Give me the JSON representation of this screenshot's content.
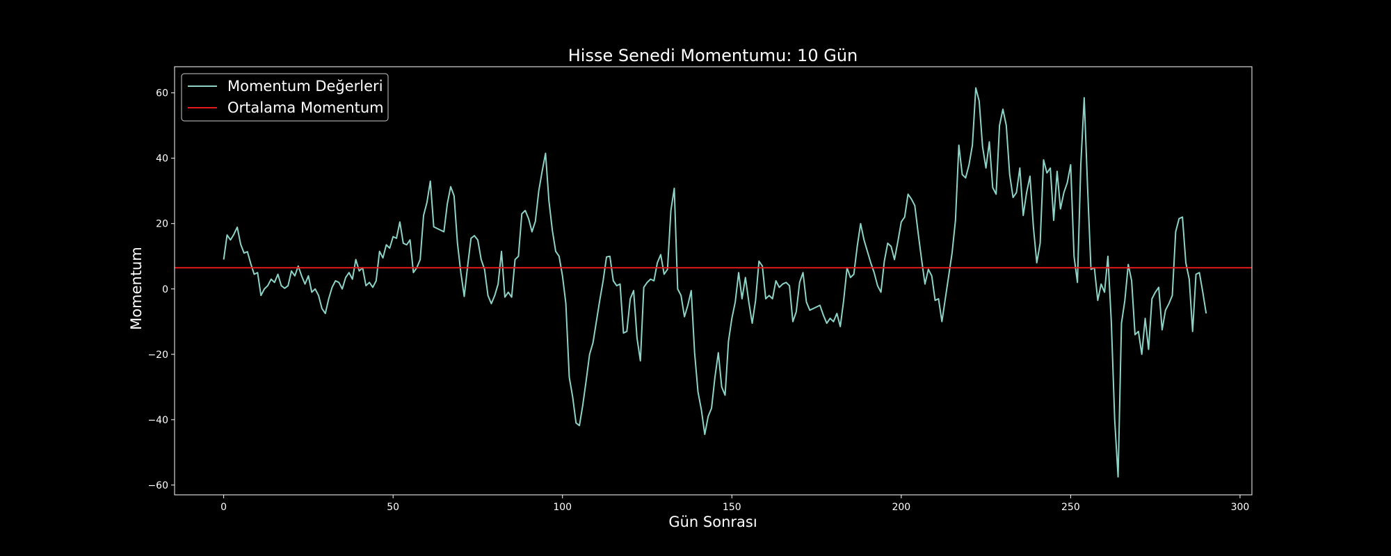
{
  "chart_data": {
    "type": "line",
    "title": "Hisse Senedi Momentumu: 10 Gün",
    "xlabel": "Gün Sonrası",
    "ylabel": "Momentum",
    "xlim": [
      -14.5,
      303.5
    ],
    "ylim": [
      -63,
      68
    ],
    "x_ticks": [
      0,
      50,
      100,
      150,
      200,
      250,
      300
    ],
    "y_ticks": [
      -60,
      -40,
      -20,
      0,
      20,
      40,
      60
    ],
    "grid": false,
    "legend_position": "upper-left",
    "colors": {
      "background": "#000000",
      "momentum": "#8dd3c7",
      "mean": "#e41a1c",
      "axes": "#ffffff"
    },
    "series": [
      {
        "name": "Momentum Değerleri",
        "x_start": 0,
        "x_step": 1,
        "values": [
          9,
          16.5,
          15,
          16.7,
          18.9,
          13.7,
          11,
          11.4,
          7.7,
          4.5,
          5,
          -2,
          0,
          1,
          3,
          2,
          4.5,
          1,
          0.2,
          1,
          5.5,
          4,
          7,
          4,
          1.5,
          4,
          -1,
          0,
          -2,
          -6,
          -7.5,
          -3,
          0.5,
          2.5,
          2,
          0,
          3.5,
          5,
          3,
          9,
          5.5,
          6.5,
          1,
          2,
          0.5,
          2.5,
          11.5,
          9.5,
          13.5,
          12.5,
          16,
          15.5,
          20.5,
          14,
          13.5,
          15,
          5,
          6.5,
          9,
          22.5,
          26.5,
          33,
          19,
          18.5,
          18,
          17.5,
          26,
          31.3,
          28.5,
          14,
          5,
          -2.3,
          7,
          15.5,
          16.3,
          15,
          9,
          6,
          -2,
          -4.5,
          -2,
          1.5,
          11.5,
          -2.5,
          -1,
          -2.5,
          9,
          10,
          23,
          24,
          21.5,
          17.5,
          20.7,
          30,
          36,
          41.5,
          27,
          18,
          11.5,
          10,
          4,
          -4.5,
          -27,
          -33,
          -41,
          -41.8,
          -35.5,
          -28,
          -20,
          -16.5,
          -10,
          -3.5,
          2.5,
          9.8,
          10,
          2.5,
          1,
          1.5,
          -13.5,
          -13,
          -3,
          -0.5,
          -15,
          -22,
          0.5,
          2,
          3,
          2.5,
          8,
          10.5,
          4.5,
          6,
          24,
          30.8,
          0,
          -2,
          -8.5,
          -5,
          -0.5,
          -19.5,
          -31.5,
          -37,
          -44.5,
          -39,
          -36.5,
          -27,
          -19.5,
          -30,
          -32.5,
          -16,
          -9,
          -4,
          5,
          -3,
          3.5,
          -4,
          -10.5,
          -3.5,
          8.5,
          7,
          -3,
          -2,
          -3,
          2.5,
          0.5,
          1.5,
          2,
          1,
          -10,
          -7,
          2,
          5,
          -4,
          -6.5,
          -6,
          -5.5,
          -5,
          -8,
          -10.5,
          -9,
          -10,
          -7.5,
          -11.5,
          -3.5,
          6.5,
          3.5,
          4.5,
          13,
          20,
          15,
          11.5,
          8,
          5,
          1,
          -1,
          8.5,
          14,
          13,
          9,
          14.5,
          20.5,
          22,
          29,
          27.5,
          25.5,
          17,
          9,
          1.5,
          6,
          4,
          -3.5,
          -3,
          -10,
          -3,
          4,
          11,
          21,
          44,
          35,
          34,
          38,
          44,
          61.5,
          57.5,
          43.5,
          37,
          45,
          31,
          29,
          50,
          55,
          50,
          35,
          28,
          29.5,
          37,
          22.5,
          29.5,
          34.5,
          19,
          8,
          14,
          39.5,
          35.5,
          37,
          21,
          36,
          24.5,
          29.5,
          32.5,
          38,
          10,
          2,
          38,
          58.5,
          31,
          6,
          6.5,
          -3.5,
          1.5,
          -1,
          10,
          -10,
          -40,
          -57.5,
          -10.5,
          -3.5,
          7.5,
          2.5,
          -14,
          -13,
          -20,
          -9,
          -18.5,
          -3,
          -1,
          0.5,
          -12.5,
          -6.5,
          -4.5,
          -2,
          17.5,
          21.5,
          22,
          8,
          3,
          -13,
          4.5,
          5,
          -1,
          -7.5
        ]
      },
      {
        "name": "Ortalama Momentum",
        "value": 6.5
      }
    ]
  }
}
